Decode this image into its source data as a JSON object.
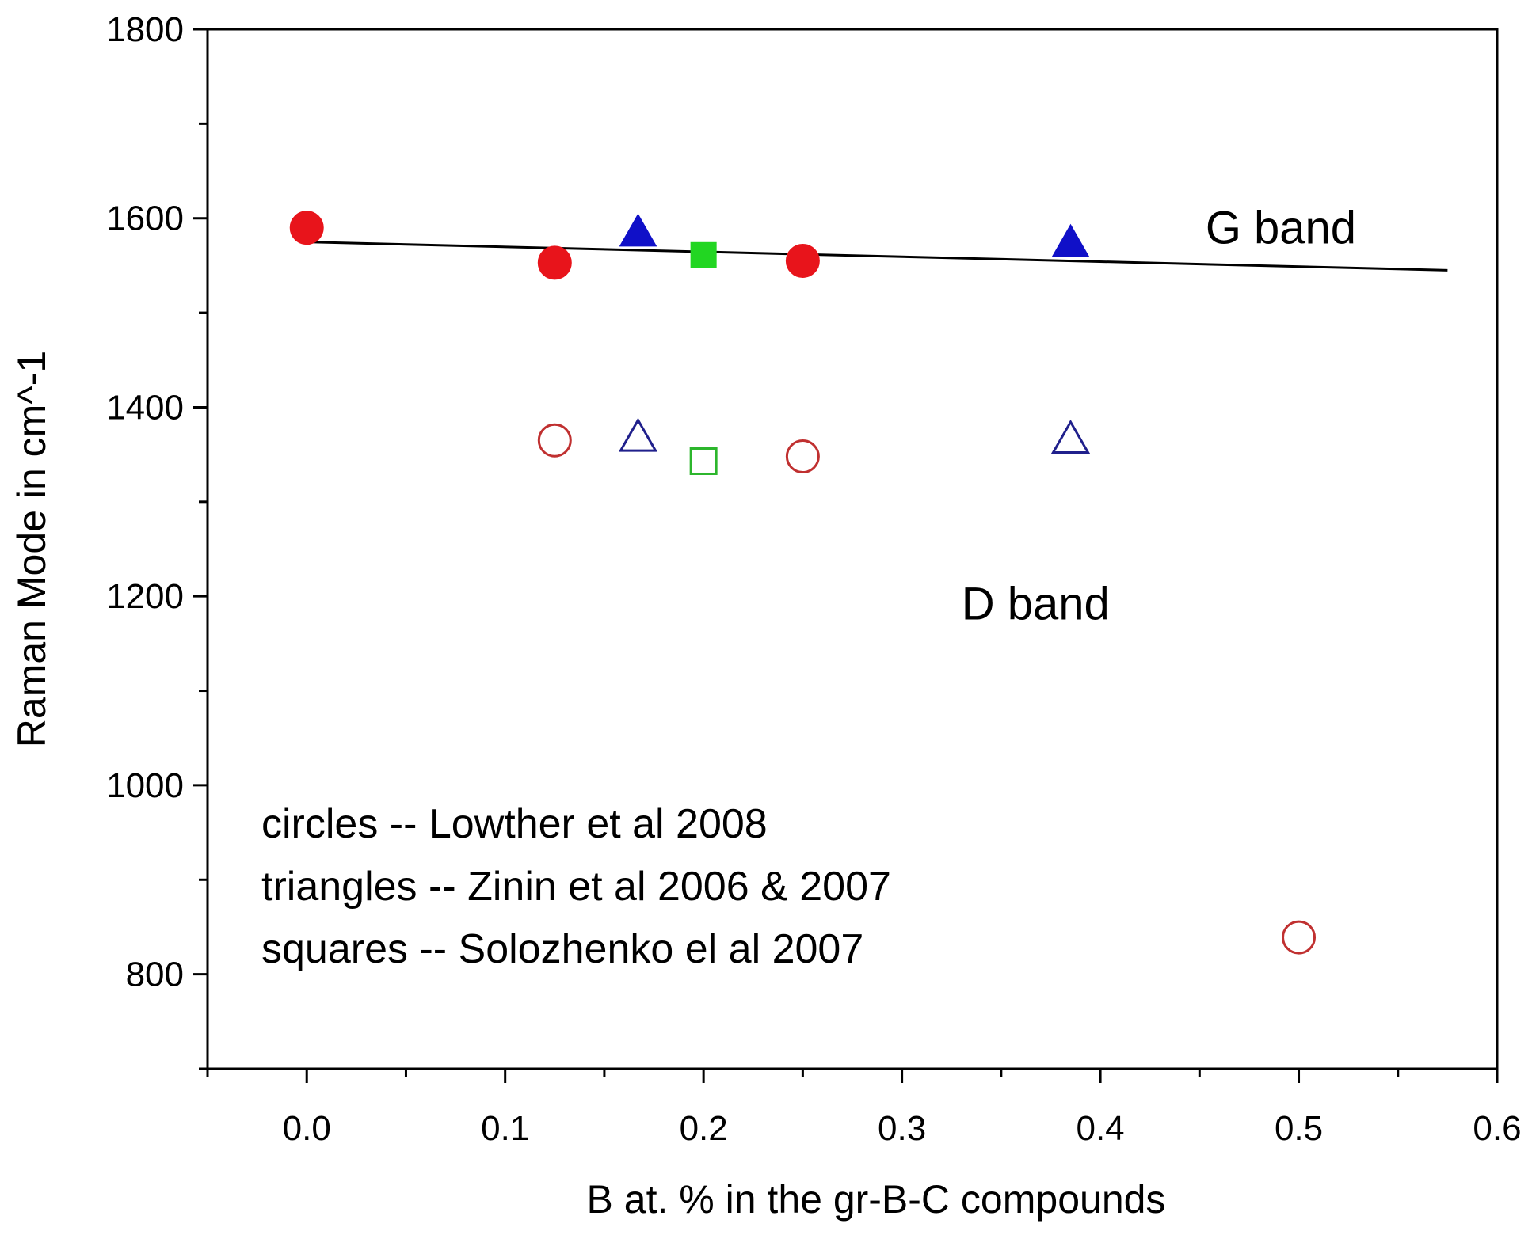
{
  "chart_data": {
    "type": "scatter",
    "title": "",
    "xlabel": "B at. % in the gr-B-C compounds",
    "ylabel": "Raman Mode in cm^-1",
    "xlim": [
      -0.05,
      0.6
    ],
    "ylim": [
      700,
      1800
    ],
    "xticks": [
      0.0,
      0.1,
      0.2,
      0.3,
      0.4,
      0.5,
      0.6
    ],
    "xtick_labels": [
      "0.0",
      "0.1",
      "0.2",
      "0.3",
      "0.4",
      "0.5",
      "0.6"
    ],
    "yticks": [
      800,
      1000,
      1200,
      1400,
      1600,
      1800
    ],
    "ytick_labels": [
      "800",
      "1000",
      "1200",
      "1400",
      "1600",
      "1800"
    ],
    "grid": false,
    "series": [
      {
        "marker": "circle",
        "filled": true,
        "color": "#e8141b",
        "x": [
          0.0,
          0.125,
          0.25
        ],
        "y": [
          1590,
          1553,
          1555
        ]
      },
      {
        "marker": "triangle",
        "filled": true,
        "color": "#1010c8",
        "x": [
          0.167,
          0.385
        ],
        "y": [
          1585,
          1574
        ]
      },
      {
        "marker": "square",
        "filled": true,
        "color": "#22d622",
        "x": [
          0.2
        ],
        "y": [
          1561
        ]
      },
      {
        "marker": "circle",
        "filled": false,
        "color": "#c03030",
        "x": [
          0.125,
          0.25,
          0.5
        ],
        "y": [
          1365,
          1348,
          839
        ]
      },
      {
        "marker": "triangle",
        "filled": false,
        "color": "#20208c",
        "x": [
          0.167,
          0.385
        ],
        "y": [
          1368,
          1366
        ]
      },
      {
        "marker": "square",
        "filled": false,
        "color": "#2cb62c",
        "x": [
          0.2
        ],
        "y": [
          1343
        ]
      }
    ],
    "fit_line": {
      "x": [
        0.0,
        0.575
      ],
      "y": [
        1575,
        1545
      ],
      "color": "#000000"
    },
    "annotations": [
      {
        "text": "G band",
        "x": 0.453,
        "y": 1590
      },
      {
        "text": "D band",
        "x": 0.33,
        "y": 1192
      }
    ],
    "notes": [
      "circles -- Lowther et al  2008",
      "triangles -- Zinin et al 2006 & 2007",
      "squares -- Solozhenko el al 2007"
    ]
  }
}
